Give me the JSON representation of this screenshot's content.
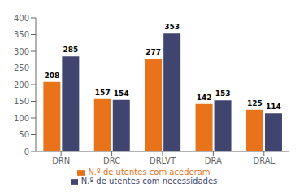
{
  "chart_data": {
    "type": "bar",
    "categories": [
      "DRN",
      "DRC",
      "DRLVT",
      "DRA",
      "DRAL"
    ],
    "series": [
      {
        "name": "N.º de utentes com acederam",
        "color": "#E8731A",
        "values": [
          208,
          157,
          277,
          142,
          125
        ]
      },
      {
        "name": "N.º de utentes com necessidades",
        "color": "#404570",
        "values": [
          285,
          154,
          353,
          153,
          114
        ]
      }
    ],
    "ylim": [
      0,
      400
    ],
    "yticks": [
      0,
      50,
      100,
      150,
      200,
      250,
      300,
      350,
      400
    ],
    "grid": false,
    "legend": "bottom",
    "data_labels": true
  }
}
